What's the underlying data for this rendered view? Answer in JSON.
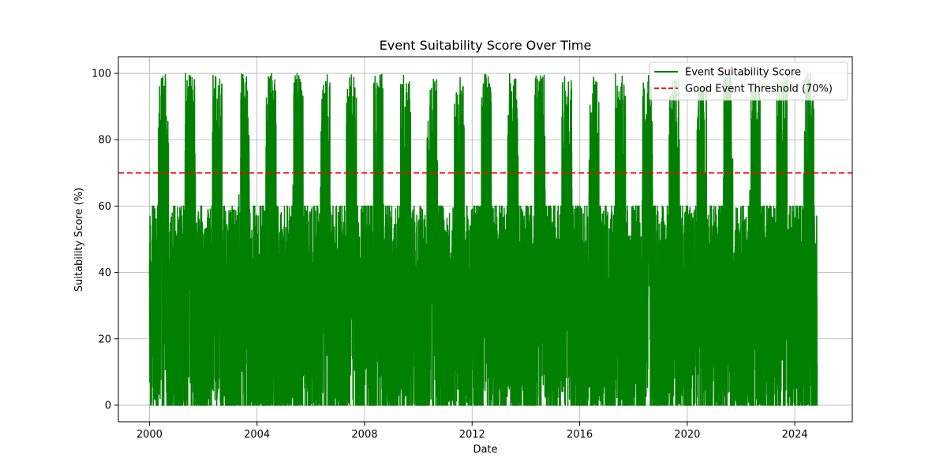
{
  "chart_data": {
    "type": "line",
    "title": "Event Suitability Score Over Time",
    "xlabel": "Date",
    "ylabel": "Suitability Score (%)",
    "xlim": [
      "1998-11-05",
      "2026-02-20"
    ],
    "ylim": [
      -5,
      105
    ],
    "xticks": [
      "2000",
      "2004",
      "2008",
      "2012",
      "2016",
      "2020",
      "2024"
    ],
    "yticks": [
      0,
      20,
      40,
      60,
      80,
      100
    ],
    "grid": true,
    "legend_position": "top-right",
    "series": [
      {
        "name": "Event Suitability Score",
        "color": "#008000",
        "style": "solid",
        "x_range": [
          "2000-01-01",
          "2024-10-31"
        ],
        "sampling": "daily",
        "pattern": "seasonal: values mostly 0-60 year-round, with peaks up to about 100 during the middle of each year",
        "approx_monthly_range": [
          {
            "period": "Jan-Mar",
            "min": 0,
            "max": 60
          },
          {
            "period": "Apr-Jun",
            "min": 0,
            "max": 100
          },
          {
            "period": "Jul-Sep",
            "min": 0,
            "max": 100
          },
          {
            "period": "Oct-Dec",
            "min": 0,
            "max": 60
          }
        ]
      },
      {
        "name": "Good Event Threshold (70%)",
        "color": "#ff0000",
        "style": "dashed",
        "y": 70
      }
    ]
  }
}
